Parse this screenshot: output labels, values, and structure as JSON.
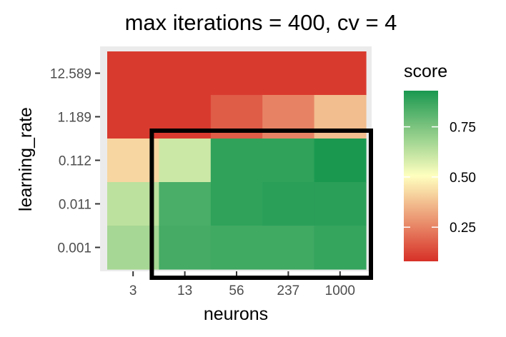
{
  "chart_data": {
    "type": "heatmap",
    "title": "max iterations = 400, cv = 4",
    "xlabel": "neurons",
    "ylabel": "learning_rate",
    "x_categories": [
      "3",
      "13",
      "56",
      "237",
      "1000"
    ],
    "y_categories": [
      "12.589",
      "1.189",
      "0.112",
      "0.011",
      "0.001"
    ],
    "values": [
      [
        0.1,
        0.1,
        0.1,
        0.1,
        0.1
      ],
      [
        0.1,
        0.1,
        0.17,
        0.25,
        0.37
      ],
      [
        0.42,
        0.6,
        0.89,
        0.89,
        0.93
      ],
      [
        0.63,
        0.84,
        0.89,
        0.9,
        0.9
      ],
      [
        0.67,
        0.85,
        0.86,
        0.86,
        0.88
      ]
    ],
    "color_scale": {
      "name": "score",
      "low_color": "#d73027",
      "mid_color": "#ffffbf",
      "high_color": "#1a9850",
      "range": [
        0.08,
        0.93
      ],
      "ticks": [
        "0.25",
        "0.50",
        "0.75"
      ],
      "tick_values": [
        0.25,
        0.5,
        0.75
      ]
    },
    "panel_background": "#ebebeb",
    "grid": true,
    "legend_position": "right",
    "highlight_box": {
      "x_from": "13",
      "x_to": "1000",
      "y_from": "0.112",
      "y_to": "0.001",
      "color": "#000000"
    }
  }
}
